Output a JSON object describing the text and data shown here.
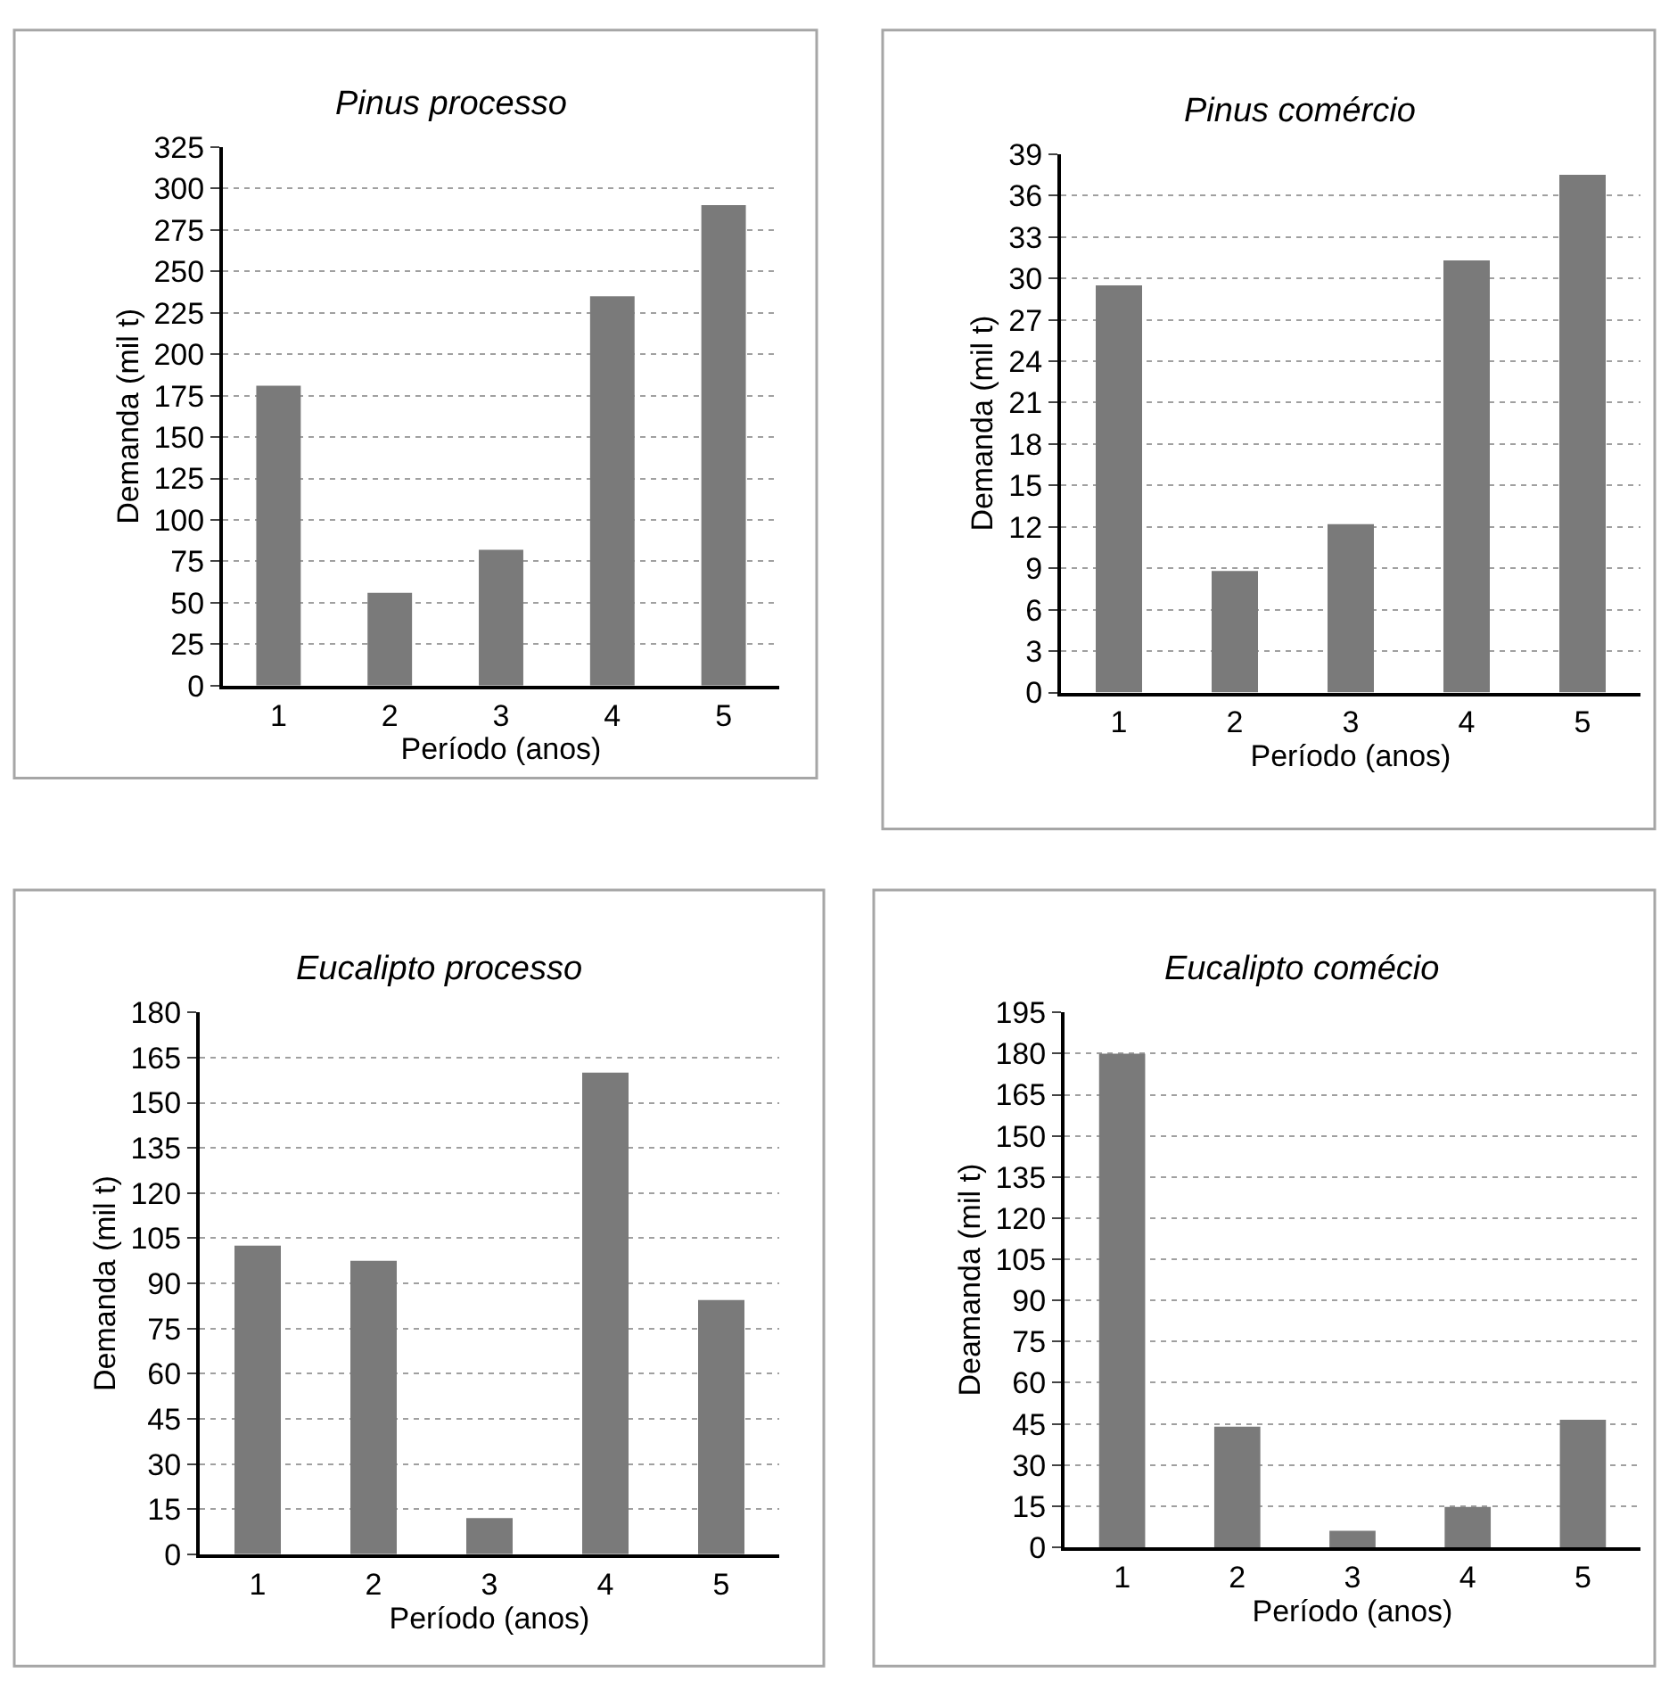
{
  "chart_data": [
    {
      "type": "bar",
      "title": "Pinus processo",
      "xlabel": "Período (anos)",
      "ylabel": "Demanda (mil t)",
      "categories": [
        "1",
        "2",
        "3",
        "4",
        "5"
      ],
      "values": [
        181,
        56,
        82,
        235,
        290
      ],
      "color": "#7a7a7a",
      "ylim": [
        0,
        325
      ],
      "yticks": [
        0,
        25,
        50,
        75,
        100,
        125,
        150,
        175,
        200,
        225,
        250,
        275,
        300,
        325
      ],
      "grid": "y"
    },
    {
      "type": "bar",
      "title": "Pinus comércio",
      "xlabel": "Período (anos)",
      "ylabel": "Demanda (mil t)",
      "categories": [
        "1",
        "2",
        "3",
        "4",
        "5"
      ],
      "values": [
        29.5,
        8.8,
        12.2,
        31.3,
        37.5
      ],
      "color": "#7a7a7a",
      "ylim": [
        0,
        39
      ],
      "yticks": [
        0,
        3,
        6,
        9,
        12,
        15,
        18,
        21,
        24,
        27,
        30,
        33,
        36,
        39
      ],
      "grid": "y"
    },
    {
      "type": "bar",
      "title": "Eucalipto processo",
      "xlabel": "Período (anos)",
      "ylabel": "Demanda (mil t)",
      "categories": [
        "1",
        "2",
        "3",
        "4",
        "5"
      ],
      "values": [
        102.5,
        97.5,
        12,
        160,
        84.5
      ],
      "color": "#7a7a7a",
      "ylim": [
        0,
        180
      ],
      "yticks": [
        0,
        15,
        30,
        45,
        60,
        75,
        90,
        105,
        120,
        135,
        150,
        165,
        180
      ],
      "grid": "y"
    },
    {
      "type": "bar",
      "title": "Eucalipto comécio",
      "xlabel": "Período (anos)",
      "ylabel": "Deamanda (mil t)",
      "categories": [
        "1",
        "2",
        "3",
        "4",
        "5"
      ],
      "values": [
        180,
        44,
        6,
        14.7,
        46.5
      ],
      "color": "#7a7a7a",
      "ylim": [
        0,
        195
      ],
      "yticks": [
        0,
        15,
        30,
        45,
        60,
        75,
        90,
        105,
        120,
        135,
        150,
        165,
        180,
        195
      ],
      "grid": "y"
    }
  ]
}
